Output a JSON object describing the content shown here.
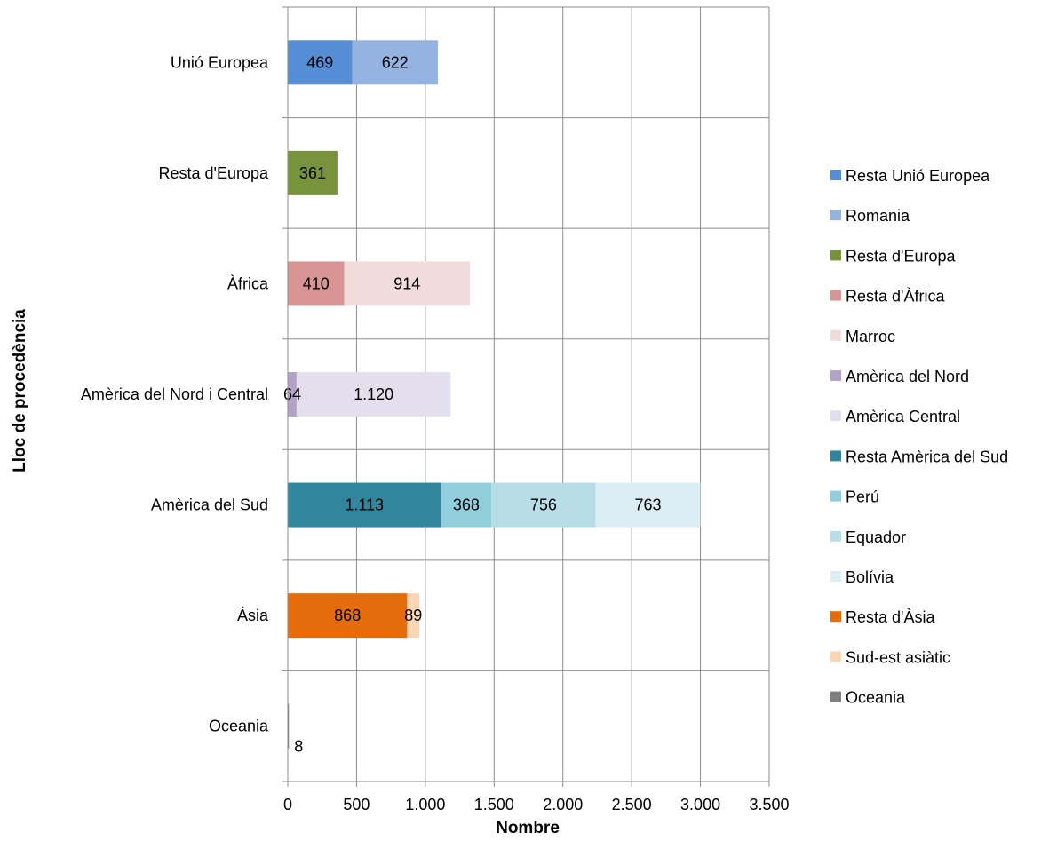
{
  "chart_data": {
    "type": "bar",
    "orientation": "horizontal",
    "stacked": true,
    "title": "",
    "xlabel": "Nombre",
    "ylabel": "Lloc de procedència",
    "xlim": [
      0,
      3500
    ],
    "x_ticks": [
      0,
      500,
      1000,
      1500,
      2000,
      2500,
      3000,
      3500
    ],
    "x_tick_labels": [
      "0",
      "500",
      "1.000",
      "1.500",
      "2.000",
      "2.500",
      "3.000",
      "3.500"
    ],
    "grid": true,
    "legend_position": "right",
    "categories": [
      "Unió Europea",
      "Resta d'Europa",
      "Àfrica",
      "Amèrica del Nord i Central",
      "Amèrica del Sud",
      "Àsia",
      "Oceania"
    ],
    "series": [
      {
        "name": "Resta Unió Europea",
        "color": "#558ed5",
        "category": "Unió Europea",
        "value": 469,
        "label": "469"
      },
      {
        "name": "Romania",
        "color": "#95b3e0",
        "category": "Unió Europea",
        "value": 622,
        "label": "622"
      },
      {
        "name": "Resta d'Europa",
        "color": "#77933c",
        "category": "Resta d'Europa",
        "value": 361,
        "label": "361"
      },
      {
        "name": "Resta d'Àfrica",
        "color": "#d99594",
        "category": "Àfrica",
        "value": 410,
        "label": "410"
      },
      {
        "name": "Marroc",
        "color": "#f2dcdb",
        "category": "Àfrica",
        "value": 914,
        "label": "914"
      },
      {
        "name": "Amèrica del Nord",
        "color": "#b3a2c7",
        "category": "Amèrica del Nord i Central",
        "value": 64,
        "label": "64"
      },
      {
        "name": "Amèrica Central",
        "color": "#e4dfec",
        "category": "Amèrica del Nord i Central",
        "value": 1120,
        "label": "1.120"
      },
      {
        "name": "Resta Amèrica del Sud",
        "color": "#31859c",
        "category": "Amèrica del Sud",
        "value": 1113,
        "label": "1.113"
      },
      {
        "name": "Perú",
        "color": "#92cddc",
        "category": "Amèrica del Sud",
        "value": 368,
        "label": "368"
      },
      {
        "name": "Equador",
        "color": "#b7dee8",
        "category": "Amèrica del Sud",
        "value": 756,
        "label": "756"
      },
      {
        "name": "Bolívia",
        "color": "#dbeef4",
        "category": "Amèrica del Sud",
        "value": 763,
        "label": "763"
      },
      {
        "name": "Resta d'Àsia",
        "color": "#e46c0a",
        "category": "Àsia",
        "value": 868,
        "label": "868"
      },
      {
        "name": "Sud-est asiàtic",
        "color": "#fcd5b5",
        "category": "Àsia",
        "value": 89,
        "label": "89"
      },
      {
        "name": "Oceania",
        "color": "#7f7f7f",
        "category": "Oceania",
        "value": 8,
        "label": "8"
      }
    ]
  }
}
